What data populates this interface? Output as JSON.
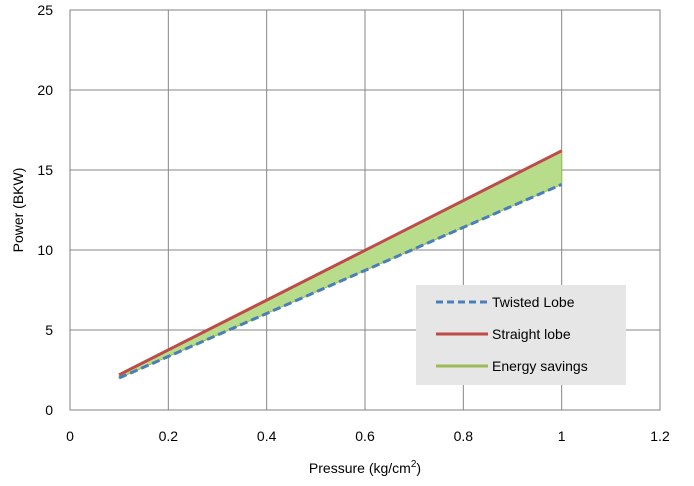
{
  "chart_data": {
    "type": "line",
    "xlabel": "Pressure (kg/cm",
    "xlabel_sup": "2",
    "xlabel_end": ")",
    "ylabel": "Power (BKW)",
    "xlim": [
      0,
      1.2
    ],
    "ylim": [
      0,
      25
    ],
    "xticks": [
      0,
      0.2,
      0.4,
      0.6,
      0.8,
      1,
      1.2
    ],
    "xtick_labels": [
      "0",
      "0.2",
      "0.4",
      "0.6",
      "0.8",
      "1",
      "1.2"
    ],
    "yticks": [
      0,
      5,
      10,
      15,
      20,
      25
    ],
    "ytick_labels": [
      "0",
      "5",
      "10",
      "15",
      "20",
      "25"
    ],
    "grid": true,
    "legend_position": "right",
    "series": [
      {
        "name": "Twisted Lobe",
        "color": "#4a7ebb",
        "style": "dashed",
        "x": [
          0.1,
          1.0
        ],
        "y": [
          2.0,
          14.1
        ]
      },
      {
        "name": "Straight lobe",
        "color": "#be4b48",
        "style": "solid",
        "x": [
          0.1,
          1.0
        ],
        "y": [
          2.2,
          16.2
        ]
      },
      {
        "name": "Energy savings",
        "color": "#9bbb59",
        "style": "fill",
        "fill_color": "#b7dd8a"
      }
    ]
  }
}
